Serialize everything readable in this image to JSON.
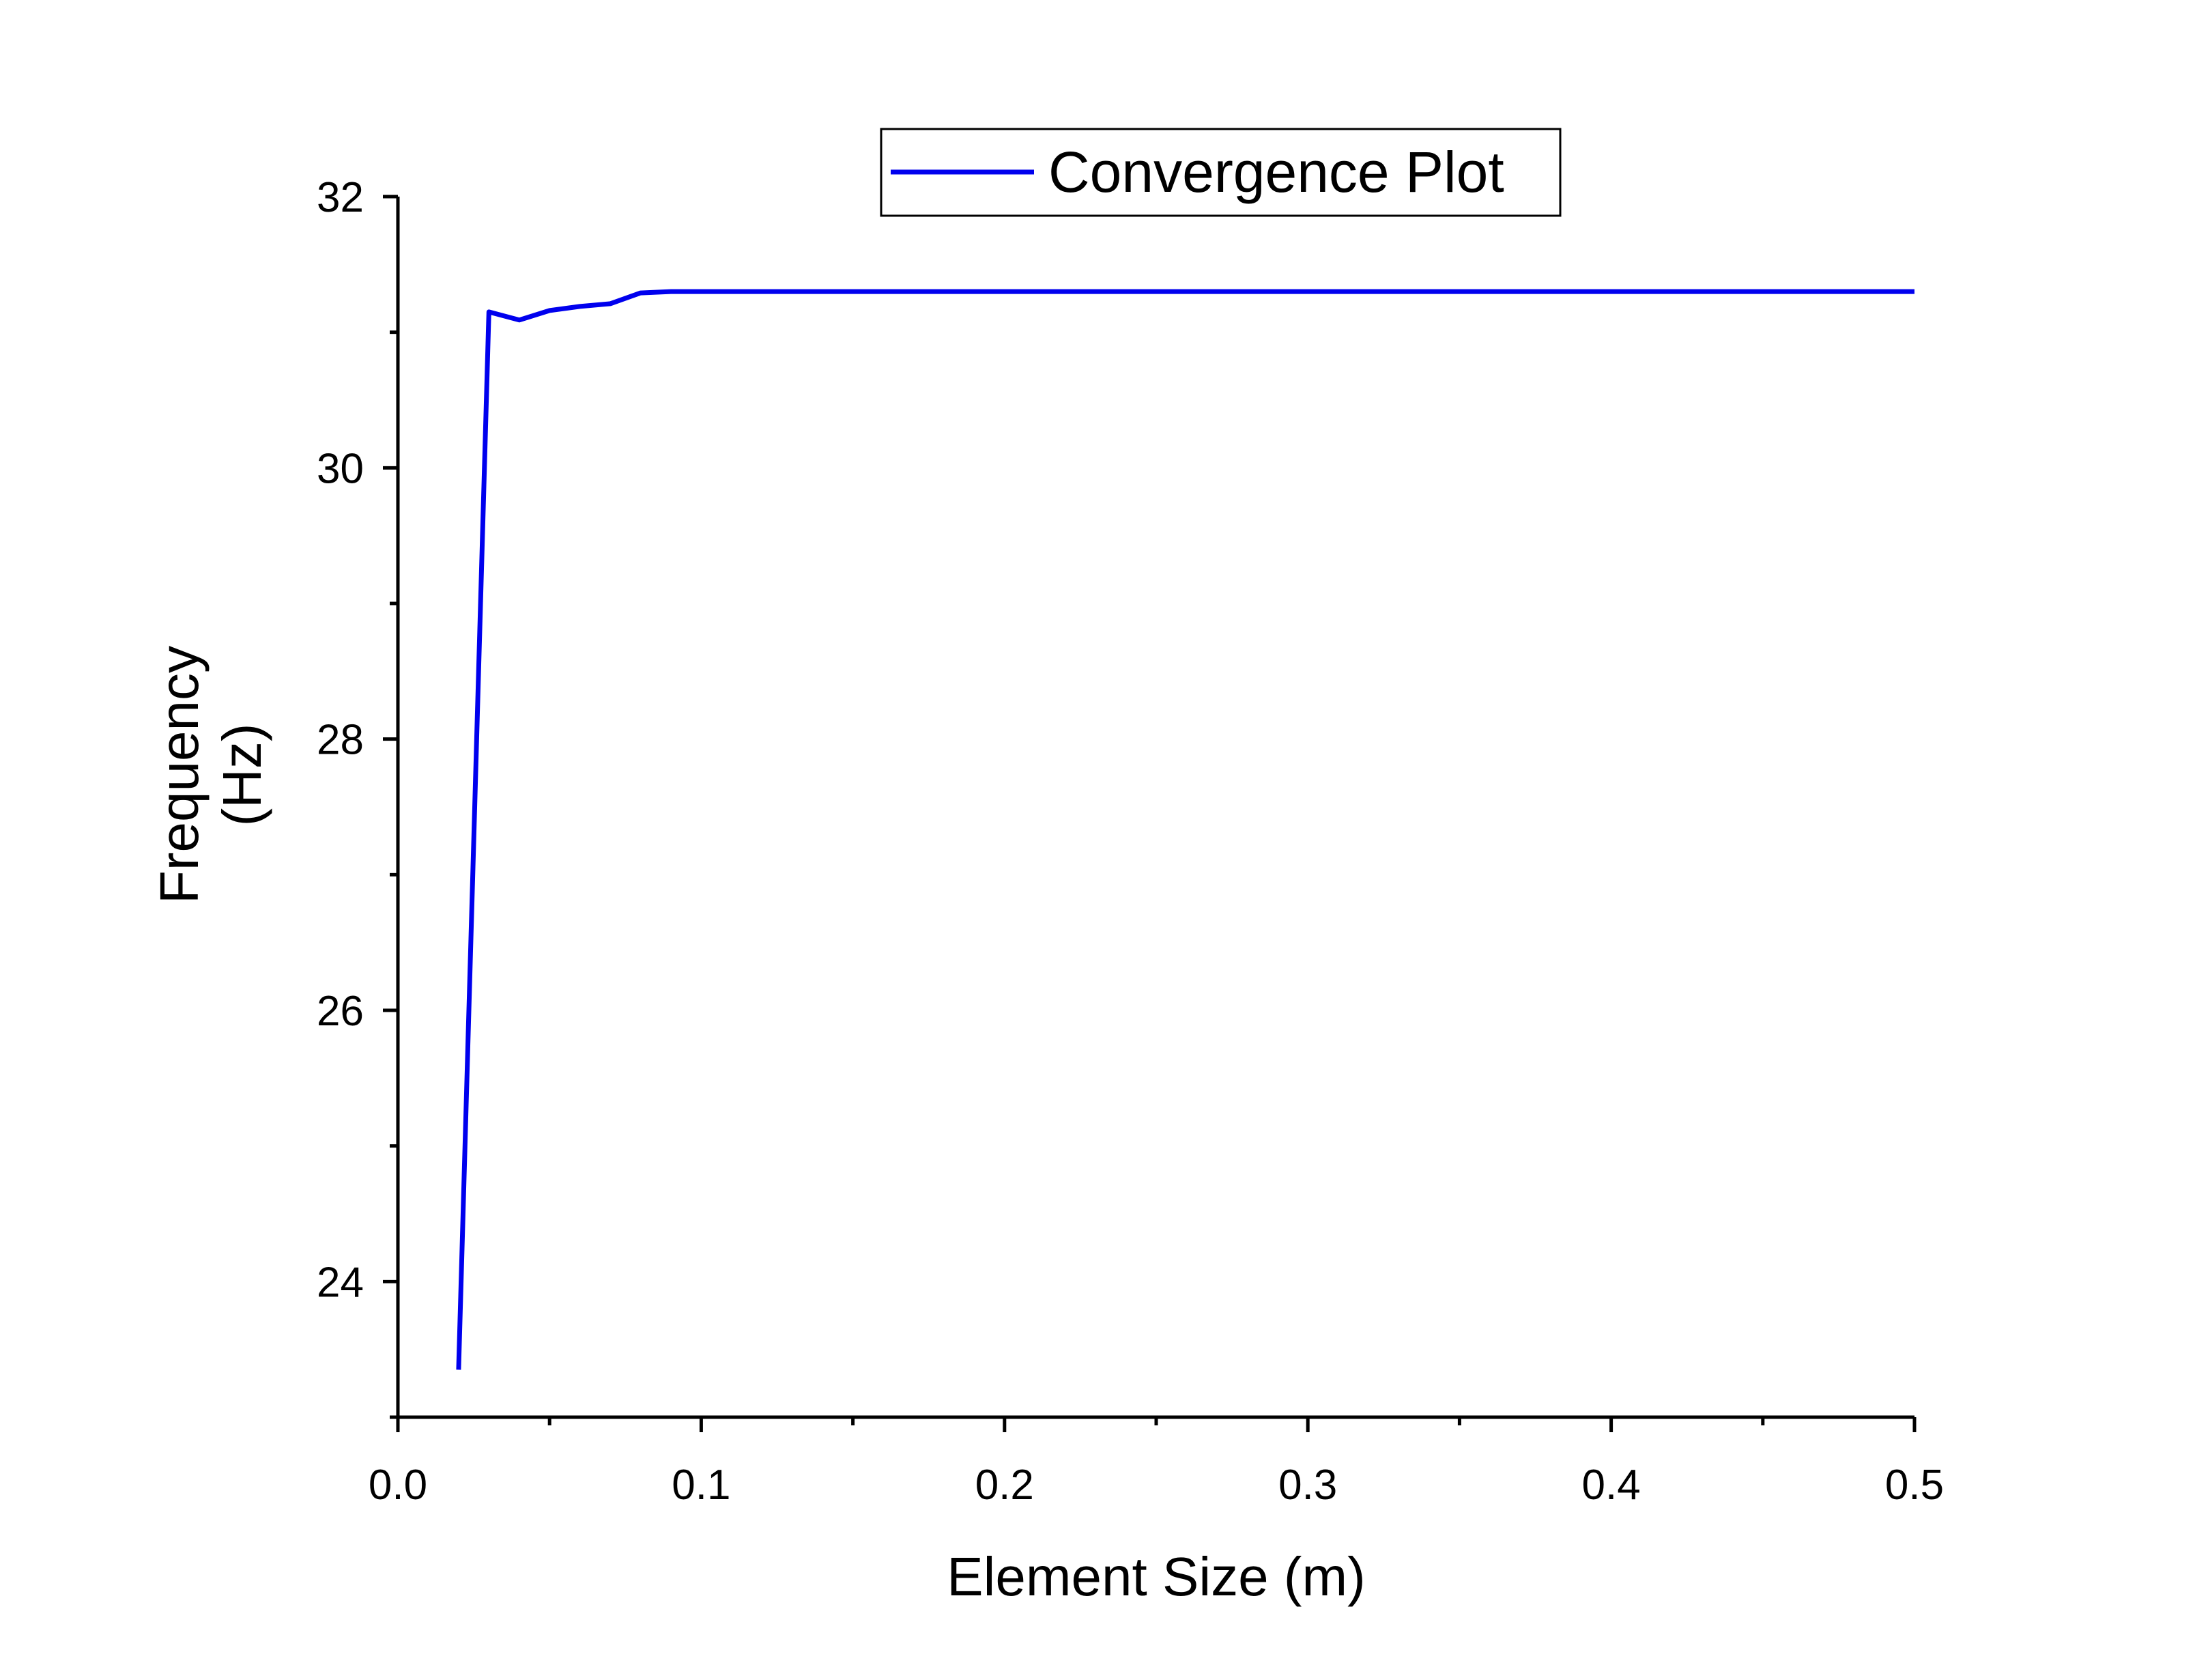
{
  "chart_data": {
    "type": "line",
    "xlabel": "Element Size (m)",
    "ylabel_lines": [
      "Frequency",
      "(Hz)"
    ],
    "xlim": [
      0,
      0.5
    ],
    "ylim": [
      23,
      32
    ],
    "x_ticks": [
      0.0,
      0.1,
      0.2,
      0.3,
      0.4,
      0.5
    ],
    "x_tick_labels": [
      "0.0",
      "0.1",
      "0.2",
      "0.3",
      "0.4",
      "0.5"
    ],
    "x_minor_ticks": [
      0.05,
      0.15,
      0.25,
      0.35,
      0.45
    ],
    "y_ticks": [
      24,
      26,
      28,
      30,
      32
    ],
    "y_tick_labels": [
      "24",
      "26",
      "28",
      "30",
      "32"
    ],
    "y_minor_ticks": [
      23,
      25,
      27,
      29,
      31
    ],
    "grid": false,
    "legend_position": "top-center",
    "series": [
      {
        "name": "Convergence Plot",
        "color": "#0000ee",
        "x": [
          0.02,
          0.03,
          0.04,
          0.05,
          0.06,
          0.07,
          0.08,
          0.09,
          0.1,
          0.2,
          0.3,
          0.4,
          0.5
        ],
        "y": [
          23.35,
          31.15,
          31.09,
          31.16,
          31.19,
          31.21,
          31.29,
          31.3,
          31.3,
          31.3,
          31.3,
          31.3,
          31.3
        ]
      }
    ]
  }
}
